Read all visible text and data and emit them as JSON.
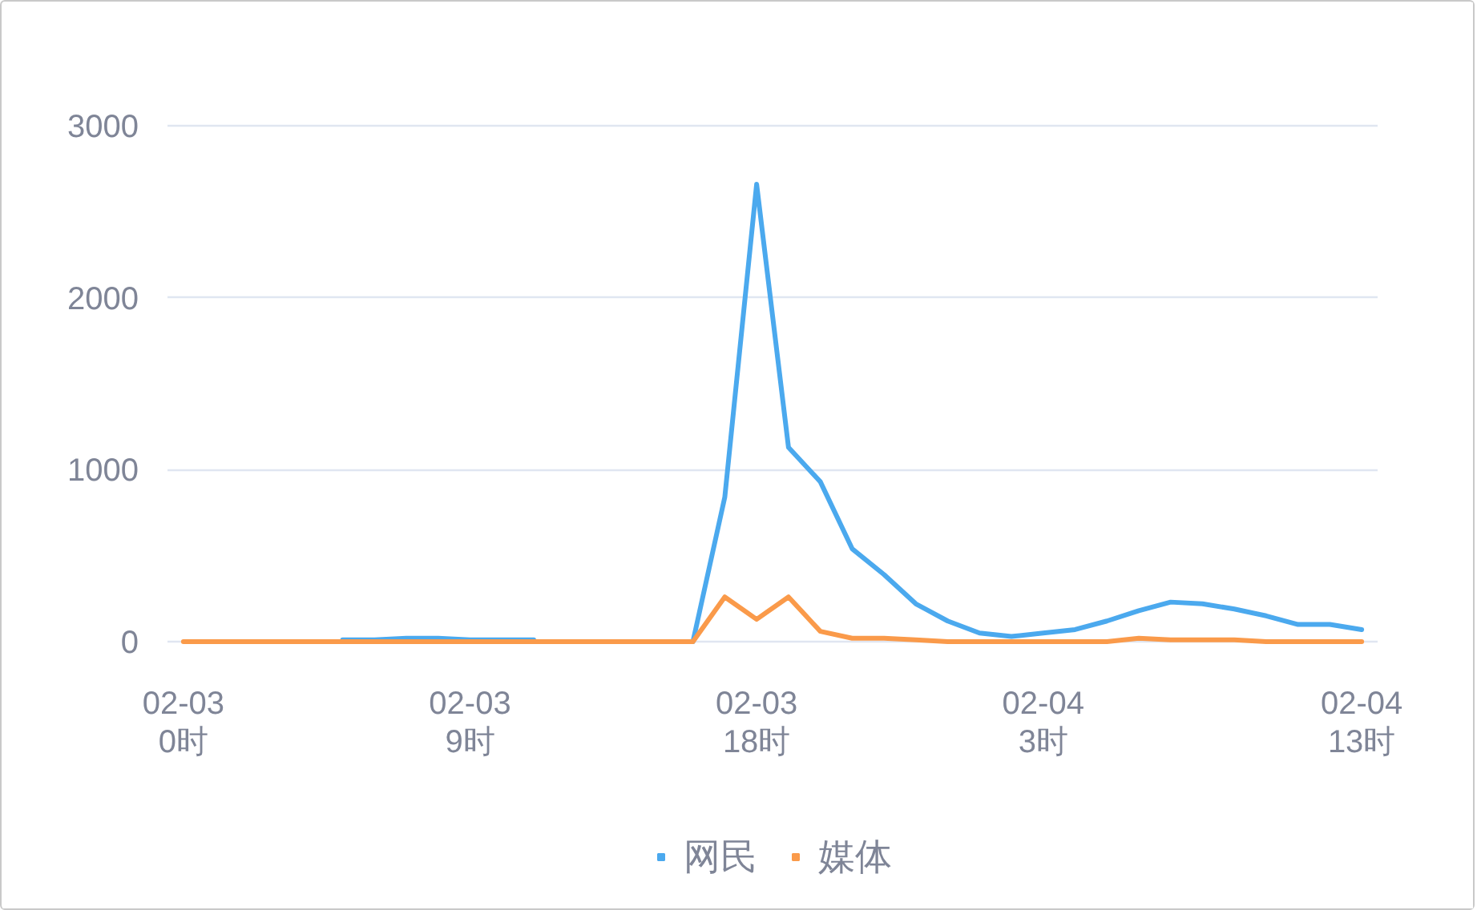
{
  "chart_data": {
    "type": "line",
    "categories": [
      "02-03\n0时",
      null,
      null,
      null,
      null,
      null,
      null,
      null,
      null,
      "02-03\n9时",
      null,
      null,
      null,
      null,
      null,
      null,
      null,
      null,
      "02-03\n18时",
      null,
      null,
      null,
      null,
      null,
      null,
      null,
      null,
      "02-04\n3时",
      null,
      null,
      null,
      null,
      null,
      null,
      null,
      null,
      null,
      "02-04\n13时"
    ],
    "ylim": [
      0,
      3000
    ],
    "yticks": [
      0,
      1000,
      2000,
      3000
    ],
    "series": [
      {
        "name": "网民",
        "color": "#4ba9ee",
        "values": [
          null,
          null,
          null,
          null,
          null,
          10,
          10,
          20,
          20,
          10,
          10,
          10,
          null,
          null,
          null,
          null,
          0,
          840,
          2660,
          1130,
          930,
          540,
          390,
          220,
          120,
          50,
          30,
          50,
          70,
          120,
          180,
          230,
          220,
          190,
          150,
          100,
          100,
          70
        ]
      },
      {
        "name": "媒体",
        "color": "#fa9a4a",
        "values": [
          0,
          0,
          0,
          0,
          0,
          0,
          0,
          0,
          0,
          0,
          0,
          0,
          0,
          0,
          0,
          0,
          0,
          260,
          130,
          260,
          60,
          20,
          20,
          10,
          0,
          0,
          0,
          0,
          0,
          0,
          20,
          10,
          10,
          10,
          0,
          0,
          0,
          0
        ]
      }
    ],
    "grid": "y",
    "legend": "bottom",
    "line_style": "solid"
  }
}
